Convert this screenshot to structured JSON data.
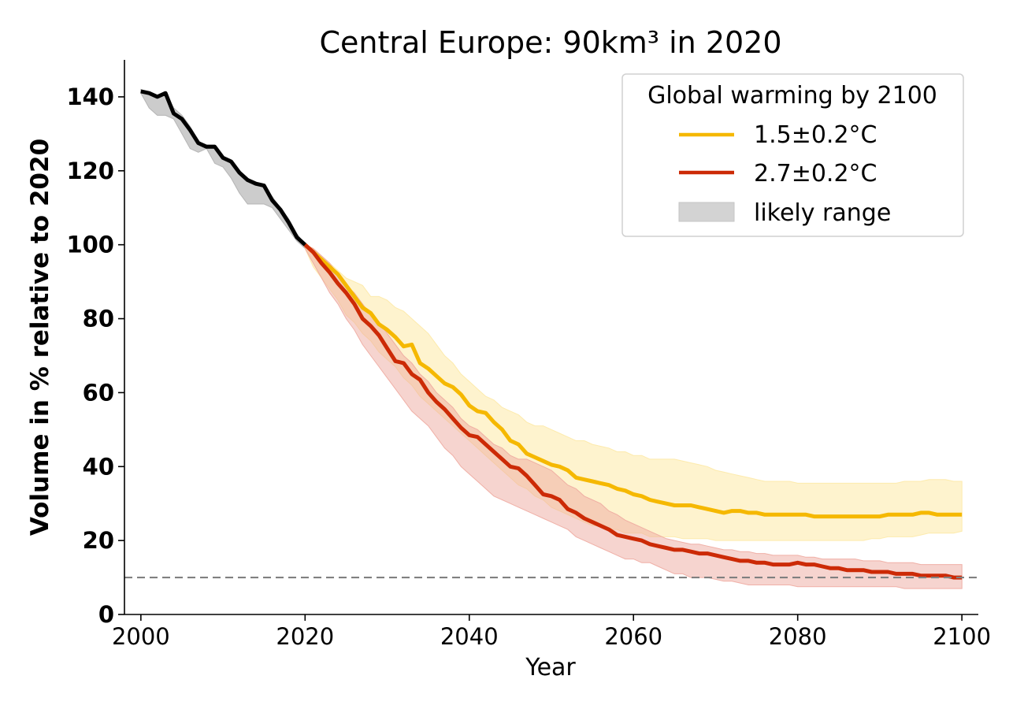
{
  "chart_data": {
    "type": "line",
    "title": "Central Europe: 90km³ in 2020",
    "xlabel": "Year",
    "ylabel": "Volume in % relative to 2020",
    "xlim": [
      1998,
      2102
    ],
    "ylim": [
      0,
      150
    ],
    "xticks": [
      2000,
      2020,
      2040,
      2060,
      2080,
      2100
    ],
    "yticks": [
      0,
      20,
      40,
      60,
      80,
      100,
      120,
      140
    ],
    "grid": false,
    "legend": {
      "title": "Global warming by 2100",
      "placement": "top-right",
      "entries": [
        "1.5±0.2°C",
        "2.7±0.2°C",
        "likely range"
      ]
    },
    "reference_line": {
      "y": 10,
      "style": "dashed",
      "color": "#808080"
    },
    "colors": {
      "historical": "#000000",
      "historical_range": "#b0b0b0",
      "low": "#f5b800",
      "low_range": "#fde9a6",
      "high": "#cc2a06",
      "high_range": "#eeaaa0",
      "legend_range": "#d3d3d3"
    },
    "series": [
      {
        "key": "historical",
        "x": [
          2000,
          2001,
          2002,
          2003,
          2004,
          2005,
          2006,
          2007,
          2008,
          2009,
          2010,
          2011,
          2012,
          2013,
          2014,
          2015,
          2016,
          2017,
          2018,
          2019,
          2020
        ],
        "values": [
          141.5,
          141,
          140,
          141,
          135.5,
          134,
          131,
          127.5,
          126.5,
          126.5,
          123.5,
          122.5,
          119.5,
          117.5,
          116.5,
          116,
          112,
          109.5,
          106,
          102,
          100
        ],
        "range_low": [
          141,
          137,
          135,
          135,
          134,
          130,
          126,
          125,
          126,
          122,
          121,
          118,
          114,
          111,
          111,
          111,
          110,
          107,
          104,
          101,
          99
        ],
        "range_high": [
          142,
          141,
          140,
          141,
          137,
          135,
          132,
          128,
          127,
          127,
          124,
          123,
          120,
          118,
          117,
          116,
          113,
          110,
          107,
          103,
          100
        ]
      },
      {
        "name": "1.5±0.2°C",
        "key": "low",
        "x": [
          2020,
          2021,
          2022,
          2023,
          2024,
          2025,
          2026,
          2027,
          2028,
          2029,
          2030,
          2031,
          2032,
          2033,
          2034,
          2035,
          2036,
          2037,
          2038,
          2039,
          2040,
          2041,
          2042,
          2043,
          2044,
          2045,
          2046,
          2047,
          2048,
          2049,
          2050,
          2051,
          2052,
          2053,
          2054,
          2055,
          2056,
          2057,
          2058,
          2059,
          2060,
          2061,
          2062,
          2063,
          2064,
          2065,
          2066,
          2067,
          2068,
          2069,
          2070,
          2071,
          2072,
          2073,
          2074,
          2075,
          2076,
          2077,
          2078,
          2079,
          2080,
          2081,
          2082,
          2083,
          2084,
          2085,
          2086,
          2087,
          2088,
          2089,
          2090,
          2091,
          2092,
          2093,
          2094,
          2095,
          2096,
          2097,
          2098,
          2099,
          2100
        ],
        "values": [
          100,
          98,
          96,
          94,
          92,
          89,
          86,
          83,
          81.5,
          78.5,
          77,
          75,
          72.5,
          73,
          68,
          66.5,
          64.5,
          62.5,
          61.5,
          59.5,
          56.5,
          55,
          54.5,
          52,
          50,
          47,
          46,
          43.5,
          42.5,
          41.5,
          40.5,
          40,
          39,
          37,
          36.5,
          36,
          35.5,
          35,
          34,
          33.5,
          32.5,
          32,
          31,
          30.5,
          30,
          29.5,
          29.5,
          29.5,
          29,
          28.5,
          28,
          27.5,
          28,
          28,
          27.5,
          27.5,
          27,
          27,
          27,
          27,
          27,
          27,
          26.5,
          26.5,
          26.5,
          26.5,
          26.5,
          26.5,
          26.5,
          26.5,
          26.5,
          27,
          27,
          27,
          27,
          27.5,
          27.5,
          27,
          27,
          27,
          27
        ],
        "range_low": [
          99,
          94,
          91,
          88,
          85,
          81,
          79,
          76,
          74,
          71,
          69,
          67,
          64,
          62,
          59,
          57,
          55,
          53,
          51,
          49,
          47,
          45,
          43,
          41,
          39,
          37,
          35,
          34,
          32,
          31,
          29,
          28,
          27,
          26,
          25,
          24,
          24,
          23,
          23,
          22,
          22,
          22,
          21,
          21,
          21,
          21,
          20.5,
          20.5,
          20.5,
          20.5,
          20,
          20,
          20,
          20,
          20,
          20,
          20,
          20,
          20,
          20,
          20,
          20,
          20,
          20,
          20,
          20,
          20,
          20,
          20,
          20.5,
          20.5,
          21,
          21,
          21,
          21,
          21.5,
          22,
          22,
          22,
          22,
          22.5
        ],
        "range_high": [
          100,
          99,
          97,
          95,
          93,
          91,
          90,
          89,
          86,
          86,
          85,
          83,
          82,
          80,
          78,
          76,
          73,
          70,
          68,
          65,
          63,
          61,
          59,
          58,
          56,
          55,
          54,
          52,
          51,
          51,
          50,
          49,
          48,
          47,
          47,
          46,
          45.5,
          45,
          44,
          44,
          43,
          43,
          42,
          42,
          42,
          42,
          41.5,
          41,
          40.5,
          40,
          39,
          38.5,
          38,
          37.5,
          37,
          36.5,
          36,
          36,
          36,
          36,
          35.5,
          35.5,
          35.5,
          35.5,
          35.5,
          35.5,
          35.5,
          35.5,
          35.5,
          35.5,
          35.5,
          35.5,
          35.5,
          36,
          36,
          36,
          36.5,
          36.5,
          36.5,
          36,
          36
        ]
      },
      {
        "name": "2.7±0.2°C",
        "key": "high",
        "x": [
          2020,
          2021,
          2022,
          2023,
          2024,
          2025,
          2026,
          2027,
          2028,
          2029,
          2030,
          2031,
          2032,
          2033,
          2034,
          2035,
          2036,
          2037,
          2038,
          2039,
          2040,
          2041,
          2042,
          2043,
          2044,
          2045,
          2046,
          2047,
          2048,
          2049,
          2050,
          2051,
          2052,
          2053,
          2054,
          2055,
          2056,
          2057,
          2058,
          2059,
          2060,
          2061,
          2062,
          2063,
          2064,
          2065,
          2066,
          2067,
          2068,
          2069,
          2070,
          2071,
          2072,
          2073,
          2074,
          2075,
          2076,
          2077,
          2078,
          2079,
          2080,
          2081,
          2082,
          2083,
          2084,
          2085,
          2086,
          2087,
          2088,
          2089,
          2090,
          2091,
          2092,
          2093,
          2094,
          2095,
          2096,
          2097,
          2098,
          2099,
          2100
        ],
        "values": [
          100,
          98,
          95,
          92.5,
          89.5,
          87,
          84,
          80,
          78,
          75.5,
          72,
          68.5,
          68,
          65,
          63.5,
          60,
          57.5,
          55.5,
          53,
          50.5,
          48.5,
          48,
          46,
          44,
          42,
          40,
          39.5,
          37.5,
          35,
          32.5,
          32,
          31,
          28.5,
          27.5,
          26,
          25,
          24,
          23,
          21.5,
          21,
          20.5,
          20,
          19,
          18.5,
          18,
          17.5,
          17.5,
          17,
          16.5,
          16.5,
          16,
          15.5,
          15,
          14.5,
          14.5,
          14,
          14,
          13.5,
          13.5,
          13.5,
          14,
          13.5,
          13.5,
          13,
          12.5,
          12.5,
          12,
          12,
          12,
          11.5,
          11.5,
          11.5,
          11,
          11,
          11,
          10.5,
          10.5,
          10.5,
          10.5,
          10,
          10
        ],
        "range_low": [
          99,
          95,
          91,
          87,
          84,
          80,
          77,
          73,
          70,
          67,
          64,
          61,
          58,
          55,
          53,
          51,
          48,
          45,
          43,
          40,
          38,
          36,
          34,
          32,
          31,
          30,
          29,
          28,
          27,
          26,
          25,
          24,
          23,
          21,
          20,
          19,
          18,
          17,
          16,
          15,
          15,
          14,
          14,
          13,
          12,
          11,
          11,
          10,
          10,
          10,
          9.5,
          9,
          9,
          8.5,
          8,
          8,
          8,
          8,
          8,
          8,
          7.5,
          7.5,
          7.5,
          7.5,
          7.5,
          7.5,
          7.5,
          7.5,
          7.5,
          7.5,
          7.5,
          7.5,
          7.5,
          7,
          7,
          7,
          7,
          7,
          7,
          7,
          7
        ],
        "range_high": [
          100,
          99,
          97,
          95,
          92,
          89,
          87,
          84,
          81,
          79,
          76,
          73,
          70,
          68,
          65,
          63,
          60,
          58,
          56,
          53,
          51,
          50,
          48,
          46,
          45,
          43,
          42,
          42,
          41,
          40,
          39,
          37,
          35,
          34,
          32,
          31,
          30,
          28,
          27,
          25.5,
          24.5,
          23.5,
          22.5,
          21.5,
          20.5,
          20,
          19.5,
          19,
          19,
          18.5,
          18,
          17.5,
          17.5,
          17,
          17,
          16.5,
          16.5,
          16,
          16,
          16,
          16,
          15.5,
          15.5,
          15,
          15,
          15,
          15,
          15,
          14.5,
          14.5,
          14.5,
          14,
          14,
          14,
          14,
          13.5,
          13.5,
          13.5,
          13.5,
          13.5,
          13.5
        ]
      }
    ]
  }
}
